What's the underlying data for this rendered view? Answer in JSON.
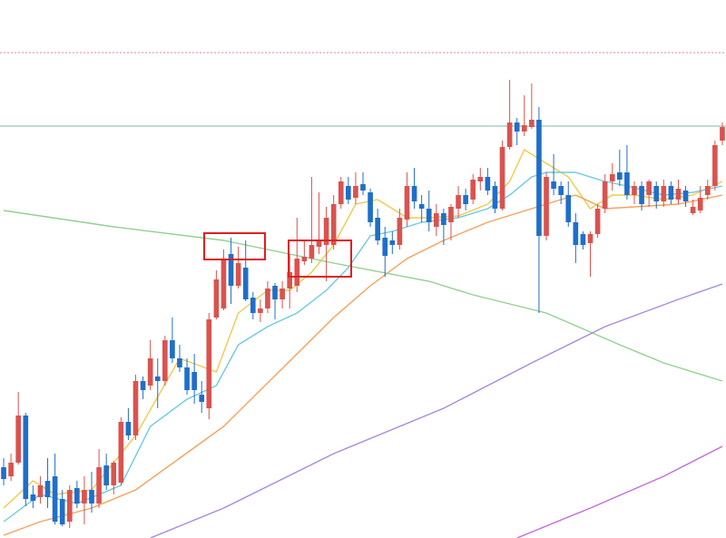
{
  "chart_data": {
    "type": "candlestick",
    "xlim": [
      -0.5,
      98.5
    ],
    "ylim": [
      0,
      593
    ],
    "up_color": "#d9534f",
    "down_color": "#1f6fc8",
    "open": [
      78,
      68,
      83,
      135,
      48,
      45,
      63,
      68,
      43,
      18,
      55,
      38,
      53,
      38,
      80,
      58,
      61,
      128,
      113,
      173,
      168,
      178,
      173,
      218,
      198,
      188,
      183,
      158,
      143,
      243,
      253,
      313,
      278,
      298,
      265,
      248,
      253,
      278,
      263,
      275,
      278,
      305,
      308,
      321,
      323,
      323,
      368,
      388,
      375,
      390,
      381,
      353,
      331,
      328,
      323,
      351,
      388,
      368,
      363,
      343,
      358,
      348,
      363,
      378,
      373,
      393,
      398,
      388,
      363,
      431,
      458,
      448,
      453,
      461,
      333,
      393,
      388,
      378,
      348,
      335,
      325,
      335,
      363,
      393,
      403,
      403,
      378,
      388,
      378,
      388,
      371,
      388,
      373,
      383,
      358,
      361,
      378,
      388,
      438
    ],
    "high": [
      88,
      93,
      161,
      138,
      58,
      68,
      88,
      93,
      53,
      58,
      63,
      68,
      73,
      98,
      93,
      85,
      133,
      143,
      180,
      178,
      218,
      198,
      223,
      243,
      213,
      198,
      203,
      173,
      248,
      295,
      318,
      331,
      321,
      328,
      271,
      263,
      283,
      281,
      283,
      313,
      353,
      328,
      398,
      381,
      365,
      378,
      398,
      398,
      403,
      403,
      385,
      363,
      343,
      338,
      363,
      403,
      408,
      378,
      383,
      368,
      363,
      368,
      388,
      385,
      401,
      408,
      408,
      393,
      438,
      505,
      463,
      488,
      501,
      475,
      403,
      423,
      393,
      393,
      358,
      338,
      338,
      368,
      401,
      413,
      428,
      433,
      393,
      393,
      395,
      393,
      395,
      393,
      395,
      388,
      373,
      388,
      395,
      438,
      458
    ],
    "low": [
      58,
      63,
      81,
      35,
      33,
      38,
      33,
      15,
      13,
      11,
      33,
      15,
      28,
      33,
      53,
      48,
      58,
      108,
      108,
      153,
      163,
      143,
      168,
      193,
      183,
      158,
      148,
      138,
      131,
      241,
      251,
      258,
      275,
      261,
      241,
      238,
      248,
      241,
      253,
      253,
      271,
      301,
      303,
      313,
      283,
      318,
      363,
      368,
      368,
      378,
      343,
      323,
      288,
      313,
      318,
      343,
      363,
      348,
      338,
      333,
      323,
      328,
      353,
      361,
      368,
      383,
      378,
      358,
      361,
      428,
      433,
      443,
      451,
      248,
      328,
      378,
      368,
      343,
      303,
      318,
      288,
      331,
      358,
      383,
      388,
      373,
      368,
      361,
      365,
      363,
      365,
      368,
      368,
      365,
      356,
      358,
      373,
      383,
      433
    ],
    "close": [
      65,
      83,
      135,
      43,
      41,
      58,
      45,
      18,
      15,
      53,
      38,
      53,
      38,
      78,
      58,
      83,
      128,
      113,
      173,
      163,
      198,
      173,
      218,
      198,
      188,
      163,
      163,
      150,
      241,
      285,
      308,
      278,
      303,
      263,
      248,
      253,
      275,
      263,
      275,
      293,
      308,
      310,
      323,
      328,
      353,
      368,
      393,
      373,
      388,
      383,
      348,
      328,
      311,
      323,
      353,
      388,
      371,
      363,
      348,
      358,
      345,
      365,
      378,
      368,
      395,
      398,
      383,
      363,
      431,
      458,
      448,
      455,
      461,
      333,
      398,
      385,
      378,
      348,
      323,
      323,
      335,
      363,
      393,
      401,
      395,
      378,
      388,
      368,
      393,
      371,
      388,
      373,
      385,
      371,
      365,
      375,
      388,
      433,
      453
    ],
    "lines": [
      {
        "color": "#f2c94c",
        "x": [
          0,
          4,
          7,
          12,
          18,
          24,
          29,
          32,
          36,
          39,
          42,
          45,
          48,
          51,
          55,
          58,
          62,
          66,
          69,
          71,
          74,
          77,
          80,
          83,
          86,
          90,
          94,
          98
        ],
        "values": [
          33,
          63,
          48,
          53,
          113,
          198,
          183,
          248,
          273,
          273,
          293,
          323,
          368,
          373,
          353,
          353,
          355,
          368,
          393,
          428,
          413,
          398,
          363,
          378,
          378,
          373,
          378,
          393
        ]
      },
      {
        "color": "#6ccae0",
        "x": [
          0,
          5,
          10,
          16,
          20,
          25,
          29,
          32,
          36,
          40,
          44,
          47,
          50,
          53,
          57,
          62,
          66,
          69,
          72,
          74,
          78,
          82,
          85,
          90,
          94,
          98
        ],
        "values": [
          18,
          48,
          38,
          58,
          123,
          153,
          168,
          213,
          233,
          248,
          273,
          298,
          333,
          338,
          348,
          353,
          363,
          378,
          398,
          403,
          403,
          393,
          388,
          378,
          381,
          388
        ]
      },
      {
        "color": "#f5a25a",
        "x": [
          0,
          5,
          12,
          18,
          24,
          30,
          35,
          40,
          45,
          50,
          55,
          60,
          66,
          70,
          74,
          78,
          82,
          86,
          92,
          98
        ],
        "values": [
          3,
          18,
          33,
          53,
          88,
          123,
          163,
          203,
          243,
          278,
          308,
          328,
          348,
          358,
          368,
          378,
          363,
          365,
          368,
          378
        ]
      },
      {
        "color": "#92d092",
        "x": [
          0,
          15,
          30,
          45,
          58,
          64,
          74,
          84,
          90,
          98
        ],
        "values": [
          361,
          343,
          328,
          303,
          283,
          268,
          248,
          213,
          193,
          173
        ]
      },
      {
        "color": "#a78bd9",
        "x": [
          20,
          30,
          45,
          60,
          72,
          82,
          92,
          98
        ],
        "values": [
          0,
          33,
          93,
          143,
          193,
          233,
          263,
          280
        ]
      },
      {
        "color": "#c46bdc",
        "x": [
          70,
          80,
          90,
          98
        ],
        "values": [
          0,
          33,
          68,
          101
        ]
      }
    ],
    "horizontal_lines": [
      {
        "value": 535,
        "color": "#e58a8a",
        "style": "dotted"
      },
      {
        "value": 454,
        "color": "#7fb8a8",
        "style": "solid"
      }
    ]
  }
}
